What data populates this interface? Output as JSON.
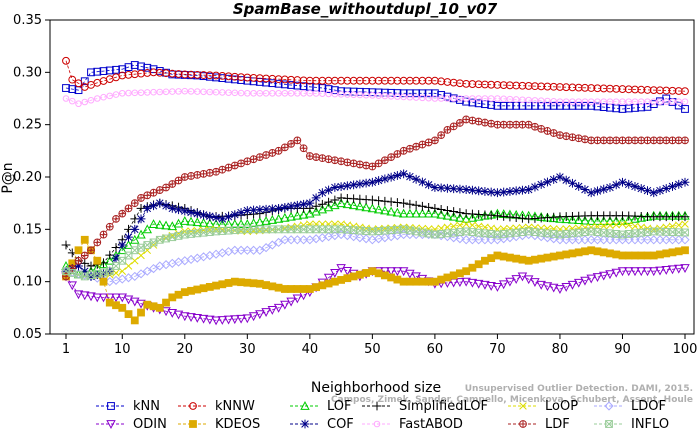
{
  "chart_data": {
    "type": "line",
    "title": "SpamBase_withoutdupl_10_v07",
    "xlabel": "Neighborhood size",
    "ylabel": "P@n",
    "xlim": [
      1,
      100
    ],
    "ylim": [
      0.05,
      0.35
    ],
    "xticks": [
      1,
      10,
      20,
      30,
      40,
      50,
      60,
      70,
      80,
      90,
      100
    ],
    "yticks": [
      "0.05",
      "0.10",
      "0.15",
      "0.20",
      "0.25",
      "0.30",
      "0.35"
    ],
    "watermark": [
      "Campos, Zimek, Sander, Campello, Micenkova, Schubert, Assent, Houle",
      "Unsupervised Outlier Detection. DAMI, 2015."
    ],
    "legend_position": "bottom",
    "series": [
      {
        "name": "kNN",
        "color": "#0000cc",
        "marker": "square",
        "keypoints": [
          [
            1,
            0.285
          ],
          [
            3,
            0.283
          ],
          [
            5,
            0.3
          ],
          [
            10,
            0.303
          ],
          [
            12,
            0.307
          ],
          [
            15,
            0.303
          ],
          [
            18,
            0.298
          ],
          [
            22,
            0.297
          ],
          [
            30,
            0.292
          ],
          [
            42,
            0.285
          ],
          [
            45,
            0.282
          ],
          [
            55,
            0.28
          ],
          [
            60,
            0.28
          ],
          [
            65,
            0.272
          ],
          [
            70,
            0.268
          ],
          [
            80,
            0.268
          ],
          [
            85,
            0.268
          ],
          [
            90,
            0.265
          ],
          [
            94,
            0.267
          ],
          [
            97,
            0.275
          ],
          [
            100,
            0.265
          ]
        ]
      },
      {
        "name": "kNNW",
        "color": "#cc0000",
        "marker": "circle",
        "keypoints": [
          [
            1,
            0.311
          ],
          [
            2,
            0.293
          ],
          [
            4,
            0.286
          ],
          [
            6,
            0.29
          ],
          [
            10,
            0.297
          ],
          [
            15,
            0.3
          ],
          [
            20,
            0.298
          ],
          [
            25,
            0.297
          ],
          [
            30,
            0.295
          ],
          [
            40,
            0.292
          ],
          [
            60,
            0.292
          ],
          [
            65,
            0.289
          ],
          [
            75,
            0.287
          ],
          [
            85,
            0.285
          ],
          [
            100,
            0.282
          ]
        ]
      },
      {
        "name": "LOF",
        "color": "#00cc00",
        "marker": "triangle-up",
        "keypoints": [
          [
            1,
            0.115
          ],
          [
            3,
            0.107
          ],
          [
            5,
            0.11
          ],
          [
            8,
            0.12
          ],
          [
            10,
            0.13
          ],
          [
            13,
            0.145
          ],
          [
            15,
            0.155
          ],
          [
            18,
            0.153
          ],
          [
            20,
            0.158
          ],
          [
            25,
            0.155
          ],
          [
            30,
            0.155
          ],
          [
            35,
            0.16
          ],
          [
            40,
            0.165
          ],
          [
            45,
            0.175
          ],
          [
            50,
            0.17
          ],
          [
            55,
            0.165
          ],
          [
            60,
            0.165
          ],
          [
            65,
            0.16
          ],
          [
            70,
            0.165
          ],
          [
            75,
            0.163
          ],
          [
            80,
            0.16
          ],
          [
            85,
            0.158
          ],
          [
            90,
            0.158
          ],
          [
            95,
            0.163
          ],
          [
            100,
            0.163
          ]
        ]
      },
      {
        "name": "SimplifiedLOF",
        "color": "#000000",
        "marker": "plus",
        "keypoints": [
          [
            1,
            0.135
          ],
          [
            3,
            0.12
          ],
          [
            5,
            0.115
          ],
          [
            7,
            0.118
          ],
          [
            10,
            0.14
          ],
          [
            13,
            0.17
          ],
          [
            16,
            0.175
          ],
          [
            20,
            0.17
          ],
          [
            24,
            0.162
          ],
          [
            28,
            0.163
          ],
          [
            32,
            0.165
          ],
          [
            36,
            0.17
          ],
          [
            40,
            0.17
          ],
          [
            45,
            0.18
          ],
          [
            50,
            0.178
          ],
          [
            55,
            0.175
          ],
          [
            60,
            0.17
          ],
          [
            65,
            0.165
          ],
          [
            70,
            0.163
          ],
          [
            75,
            0.16
          ],
          [
            80,
            0.162
          ],
          [
            85,
            0.163
          ],
          [
            90,
            0.163
          ],
          [
            95,
            0.162
          ],
          [
            100,
            0.162
          ]
        ]
      },
      {
        "name": "LoOP",
        "color": "#dddd00",
        "marker": "x",
        "keypoints": [
          [
            1,
            0.11
          ],
          [
            4,
            0.105
          ],
          [
            7,
            0.105
          ],
          [
            10,
            0.11
          ],
          [
            13,
            0.125
          ],
          [
            16,
            0.14
          ],
          [
            20,
            0.148
          ],
          [
            25,
            0.15
          ],
          [
            30,
            0.148
          ],
          [
            35,
            0.15
          ],
          [
            40,
            0.155
          ],
          [
            45,
            0.155
          ],
          [
            50,
            0.15
          ],
          [
            55,
            0.152
          ],
          [
            60,
            0.15
          ],
          [
            65,
            0.155
          ],
          [
            70,
            0.15
          ],
          [
            75,
            0.152
          ],
          [
            80,
            0.15
          ],
          [
            85,
            0.152
          ],
          [
            90,
            0.155
          ],
          [
            95,
            0.15
          ],
          [
            100,
            0.155
          ]
        ]
      },
      {
        "name": "LDOF",
        "color": "#aaaaff",
        "marker": "diamond",
        "keypoints": [
          [
            1,
            0.11
          ],
          [
            5,
            0.105
          ],
          [
            8,
            0.1
          ],
          [
            12,
            0.105
          ],
          [
            16,
            0.115
          ],
          [
            20,
            0.12
          ],
          [
            24,
            0.125
          ],
          [
            28,
            0.13
          ],
          [
            32,
            0.13
          ],
          [
            36,
            0.14
          ],
          [
            40,
            0.14
          ],
          [
            45,
            0.145
          ],
          [
            50,
            0.14
          ],
          [
            55,
            0.145
          ],
          [
            60,
            0.145
          ],
          [
            65,
            0.14
          ],
          [
            70,
            0.14
          ],
          [
            75,
            0.145
          ],
          [
            80,
            0.14
          ],
          [
            85,
            0.14
          ],
          [
            90,
            0.14
          ],
          [
            95,
            0.14
          ],
          [
            100,
            0.14
          ]
        ]
      },
      {
        "name": "ODIN",
        "color": "#8800cc",
        "marker": "triangle-down",
        "keypoints": [
          [
            1,
            0.105
          ],
          [
            3,
            0.088
          ],
          [
            6,
            0.085
          ],
          [
            10,
            0.085
          ],
          [
            15,
            0.075
          ],
          [
            20,
            0.067
          ],
          [
            25,
            0.063
          ],
          [
            30,
            0.065
          ],
          [
            35,
            0.075
          ],
          [
            40,
            0.09
          ],
          [
            45,
            0.113
          ],
          [
            48,
            0.105
          ],
          [
            50,
            0.11
          ],
          [
            55,
            0.11
          ],
          [
            60,
            0.098
          ],
          [
            65,
            0.1
          ],
          [
            70,
            0.095
          ],
          [
            74,
            0.105
          ],
          [
            77,
            0.097
          ],
          [
            80,
            0.093
          ],
          [
            85,
            0.103
          ],
          [
            90,
            0.11
          ],
          [
            95,
            0.11
          ],
          [
            100,
            0.113
          ]
        ]
      },
      {
        "name": "KDEOS",
        "color": "#ddaa00",
        "marker": "square-filled",
        "keypoints": [
          [
            1,
            0.105
          ],
          [
            3,
            0.13
          ],
          [
            4,
            0.14
          ],
          [
            6,
            0.12
          ],
          [
            8,
            0.08
          ],
          [
            10,
            0.075
          ],
          [
            12,
            0.063
          ],
          [
            14,
            0.078
          ],
          [
            16,
            0.075
          ],
          [
            18,
            0.085
          ],
          [
            20,
            0.09
          ],
          [
            24,
            0.095
          ],
          [
            28,
            0.1
          ],
          [
            32,
            0.098
          ],
          [
            36,
            0.093
          ],
          [
            40,
            0.093
          ],
          [
            44,
            0.1
          ],
          [
            50,
            0.11
          ],
          [
            55,
            0.1
          ],
          [
            60,
            0.1
          ],
          [
            65,
            0.11
          ],
          [
            68,
            0.12
          ],
          [
            70,
            0.125
          ],
          [
            75,
            0.12
          ],
          [
            80,
            0.125
          ],
          [
            85,
            0.13
          ],
          [
            90,
            0.125
          ],
          [
            95,
            0.125
          ],
          [
            100,
            0.13
          ]
        ]
      },
      {
        "name": "COF",
        "color": "#000088",
        "marker": "star",
        "keypoints": [
          [
            1,
            0.11
          ],
          [
            3,
            0.115
          ],
          [
            5,
            0.105
          ],
          [
            8,
            0.11
          ],
          [
            10,
            0.135
          ],
          [
            12,
            0.15
          ],
          [
            14,
            0.17
          ],
          [
            16,
            0.175
          ],
          [
            18,
            0.17
          ],
          [
            22,
            0.165
          ],
          [
            26,
            0.16
          ],
          [
            30,
            0.168
          ],
          [
            35,
            0.17
          ],
          [
            40,
            0.175
          ],
          [
            42,
            0.185
          ],
          [
            44,
            0.19
          ],
          [
            50,
            0.195
          ],
          [
            55,
            0.203
          ],
          [
            60,
            0.19
          ],
          [
            65,
            0.188
          ],
          [
            70,
            0.185
          ],
          [
            75,
            0.188
          ],
          [
            80,
            0.2
          ],
          [
            85,
            0.185
          ],
          [
            88,
            0.19
          ],
          [
            90,
            0.195
          ],
          [
            95,
            0.185
          ],
          [
            100,
            0.195
          ]
        ]
      },
      {
        "name": "FastABOD",
        "color": "#ffaaff",
        "marker": "circle-small",
        "keypoints": [
          [
            1,
            0.275
          ],
          [
            3,
            0.27
          ],
          [
            6,
            0.275
          ],
          [
            10,
            0.28
          ],
          [
            20,
            0.282
          ],
          [
            30,
            0.28
          ],
          [
            40,
            0.28
          ],
          [
            50,
            0.278
          ],
          [
            60,
            0.275
          ],
          [
            70,
            0.275
          ],
          [
            80,
            0.272
          ],
          [
            90,
            0.272
          ],
          [
            100,
            0.272
          ]
        ]
      },
      {
        "name": "LDF",
        "color": "#aa2222",
        "marker": "circle-cross",
        "keypoints": [
          [
            1,
            0.105
          ],
          [
            3,
            0.12
          ],
          [
            5,
            0.13
          ],
          [
            7,
            0.145
          ],
          [
            9,
            0.16
          ],
          [
            11,
            0.17
          ],
          [
            13,
            0.18
          ],
          [
            15,
            0.185
          ],
          [
            17,
            0.19
          ],
          [
            20,
            0.2
          ],
          [
            25,
            0.205
          ],
          [
            30,
            0.215
          ],
          [
            35,
            0.225
          ],
          [
            38,
            0.235
          ],
          [
            40,
            0.22
          ],
          [
            45,
            0.215
          ],
          [
            50,
            0.21
          ],
          [
            55,
            0.225
          ],
          [
            60,
            0.235
          ],
          [
            62,
            0.245
          ],
          [
            65,
            0.255
          ],
          [
            70,
            0.25
          ],
          [
            75,
            0.25
          ],
          [
            80,
            0.24
          ],
          [
            85,
            0.235
          ],
          [
            90,
            0.235
          ],
          [
            100,
            0.235
          ]
        ]
      },
      {
        "name": "INFLO",
        "color": "#99cc99",
        "marker": "hourglass",
        "keypoints": [
          [
            1,
            0.11
          ],
          [
            4,
            0.105
          ],
          [
            8,
            0.11
          ],
          [
            12,
            0.13
          ],
          [
            16,
            0.14
          ],
          [
            20,
            0.145
          ],
          [
            25,
            0.148
          ],
          [
            30,
            0.15
          ],
          [
            35,
            0.15
          ],
          [
            40,
            0.15
          ],
          [
            45,
            0.15
          ],
          [
            50,
            0.148
          ],
          [
            55,
            0.15
          ],
          [
            60,
            0.145
          ],
          [
            65,
            0.148
          ],
          [
            70,
            0.145
          ],
          [
            75,
            0.148
          ],
          [
            80,
            0.145
          ],
          [
            85,
            0.148
          ],
          [
            90,
            0.145
          ],
          [
            95,
            0.148
          ],
          [
            100,
            0.147
          ]
        ]
      }
    ]
  }
}
